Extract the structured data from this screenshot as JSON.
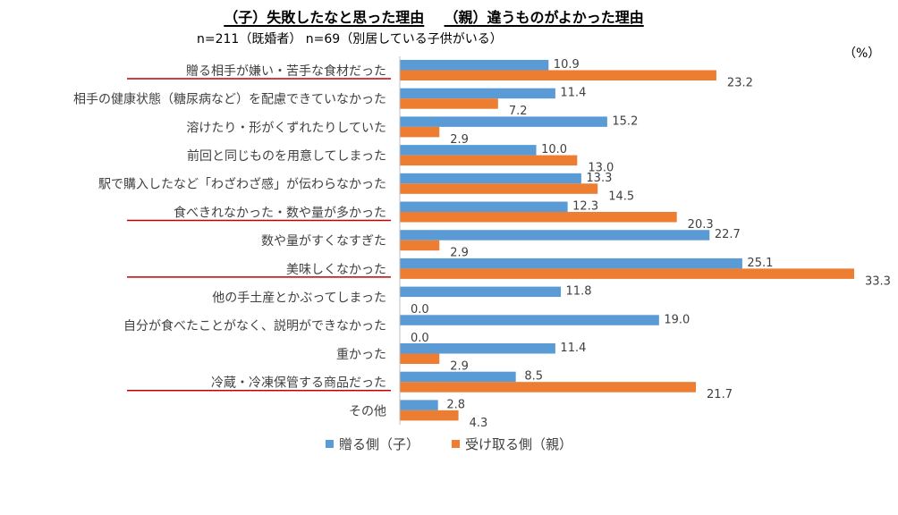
{
  "title": {
    "child_part": "（子）失敗したなと思った理由",
    "parent_part": "（親）違うものがよかった理由"
  },
  "subtitle": "n=211（既婚者） n=69（別居している子供がいる）",
  "unit": "（%）",
  "colors": {
    "giver": "#5B9BD5",
    "receiver": "#ED7D31",
    "underline": "#C00000",
    "axis": "#BFBFBF"
  },
  "chart_data": {
    "type": "bar",
    "orientation": "horizontal",
    "categories": [
      "贈る相手が嫌い・苦手な食材だった",
      "相手の健康状態（糖尿病など）を配慮できていなかった",
      "溶けたり・形がくずれたりしていた",
      "前回と同じものを用意してしまった",
      "駅で購入したなど「わざわざ感」が伝わらなかった",
      "食べきれなかった・数や量が多かった",
      "数や量がすくなすぎた",
      "美味しくなかった",
      "他の手土産とかぶってしまった",
      "自分が食べたことがなく、説明ができなかった",
      "重かった",
      "冷蔵・冷凍保管する商品だった",
      "その他"
    ],
    "underlined_categories": [
      0,
      5,
      7,
      11
    ],
    "series": [
      {
        "name": "贈る側（子）",
        "color": "#5B9BD5",
        "values": [
          10.9,
          11.4,
          15.2,
          10.0,
          13.3,
          12.3,
          22.7,
          25.1,
          11.8,
          19.0,
          11.4,
          8.5,
          2.8
        ]
      },
      {
        "name": "受け取る側（親）",
        "color": "#ED7D31",
        "values": [
          23.2,
          7.2,
          2.9,
          13.0,
          14.5,
          20.3,
          2.9,
          33.3,
          0.0,
          0.0,
          2.9,
          21.7,
          4.3
        ]
      }
    ],
    "xlim": [
      0,
      33.3
    ],
    "legend_position": "bottom",
    "grid": false
  }
}
